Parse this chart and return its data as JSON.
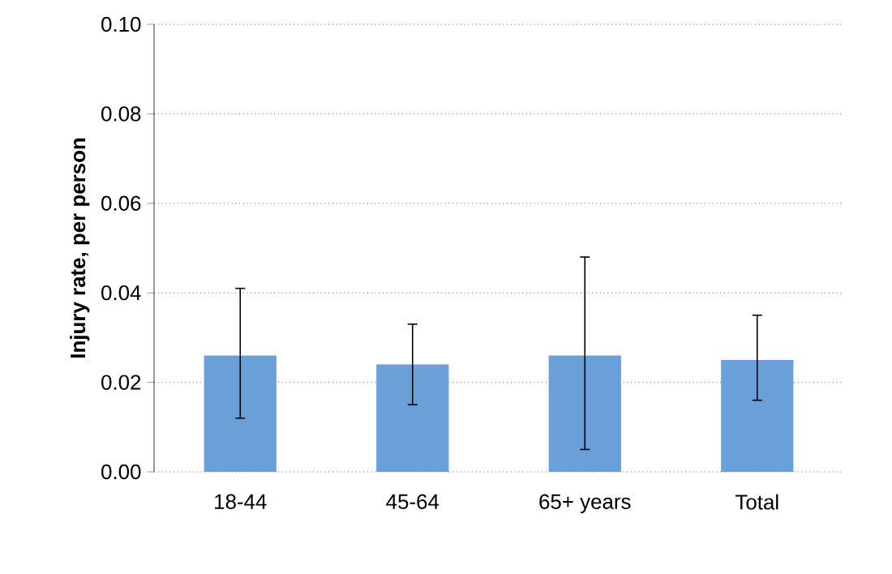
{
  "chart_data": {
    "type": "bar",
    "ylabel": "Injury rate, per person",
    "categories": [
      "18-44",
      "45-64",
      "65+ years",
      "Total"
    ],
    "values": [
      0.026,
      0.024,
      0.026,
      0.025
    ],
    "errors": [
      [
        0.012,
        0.041
      ],
      [
        0.015,
        0.033
      ],
      [
        0.005,
        0.048
      ],
      [
        0.016,
        0.035
      ]
    ],
    "color": "#6a9fd8",
    "ylim": [
      0,
      0.1
    ],
    "yticks": [
      {
        "value": 0,
        "label": "0.00"
      },
      {
        "value": 0.02,
        "label": "0.02"
      },
      {
        "value": 0.04,
        "label": "0.04"
      },
      {
        "value": 0.06,
        "label": "0.06"
      },
      {
        "value": 0.08,
        "label": "0.08"
      },
      {
        "value": 0.1,
        "label": "0.10"
      }
    ],
    "grid": "y"
  }
}
